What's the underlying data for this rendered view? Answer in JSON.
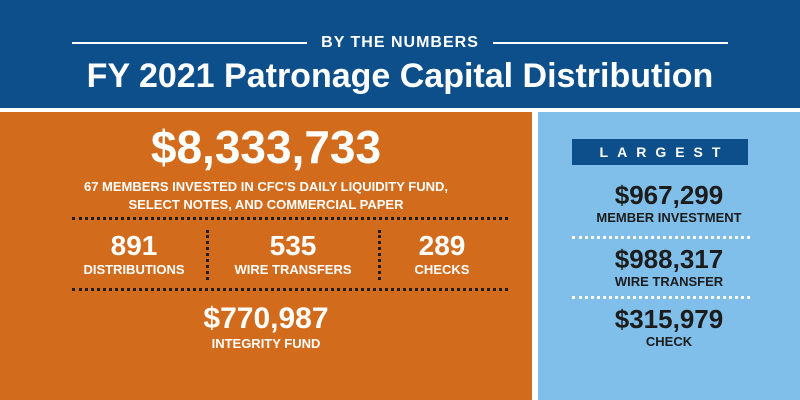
{
  "header": {
    "kicker": "BY THE NUMBERS",
    "title": "FY 2021 Patronage Capital Distribution"
  },
  "left": {
    "total": "$8,333,733",
    "total_desc_line1": "67 MEMBERS INVESTED IN CFC'S DAILY LIQUIDITY FUND,",
    "total_desc_line2": "SELECT NOTES, AND COMMERCIAL PAPER",
    "stats": [
      {
        "value": "891",
        "label": "DISTRIBUTIONS"
      },
      {
        "value": "535",
        "label": "WIRE TRANSFERS"
      },
      {
        "value": "289",
        "label": "CHECKS"
      }
    ],
    "integrity": {
      "value": "$770,987",
      "label": "INTEGRITY FUND"
    }
  },
  "right": {
    "badge": "LARGEST",
    "items": [
      {
        "value": "$967,299",
        "label": "MEMBER INVESTMENT"
      },
      {
        "value": "$988,317",
        "label": "WIRE TRANSFER"
      },
      {
        "value": "$315,979",
        "label": "CHECK"
      }
    ]
  },
  "colors": {
    "header_blue": "#0d4f8b",
    "left_orange": "#d26b1b",
    "right_light_blue": "#7fbfea"
  }
}
